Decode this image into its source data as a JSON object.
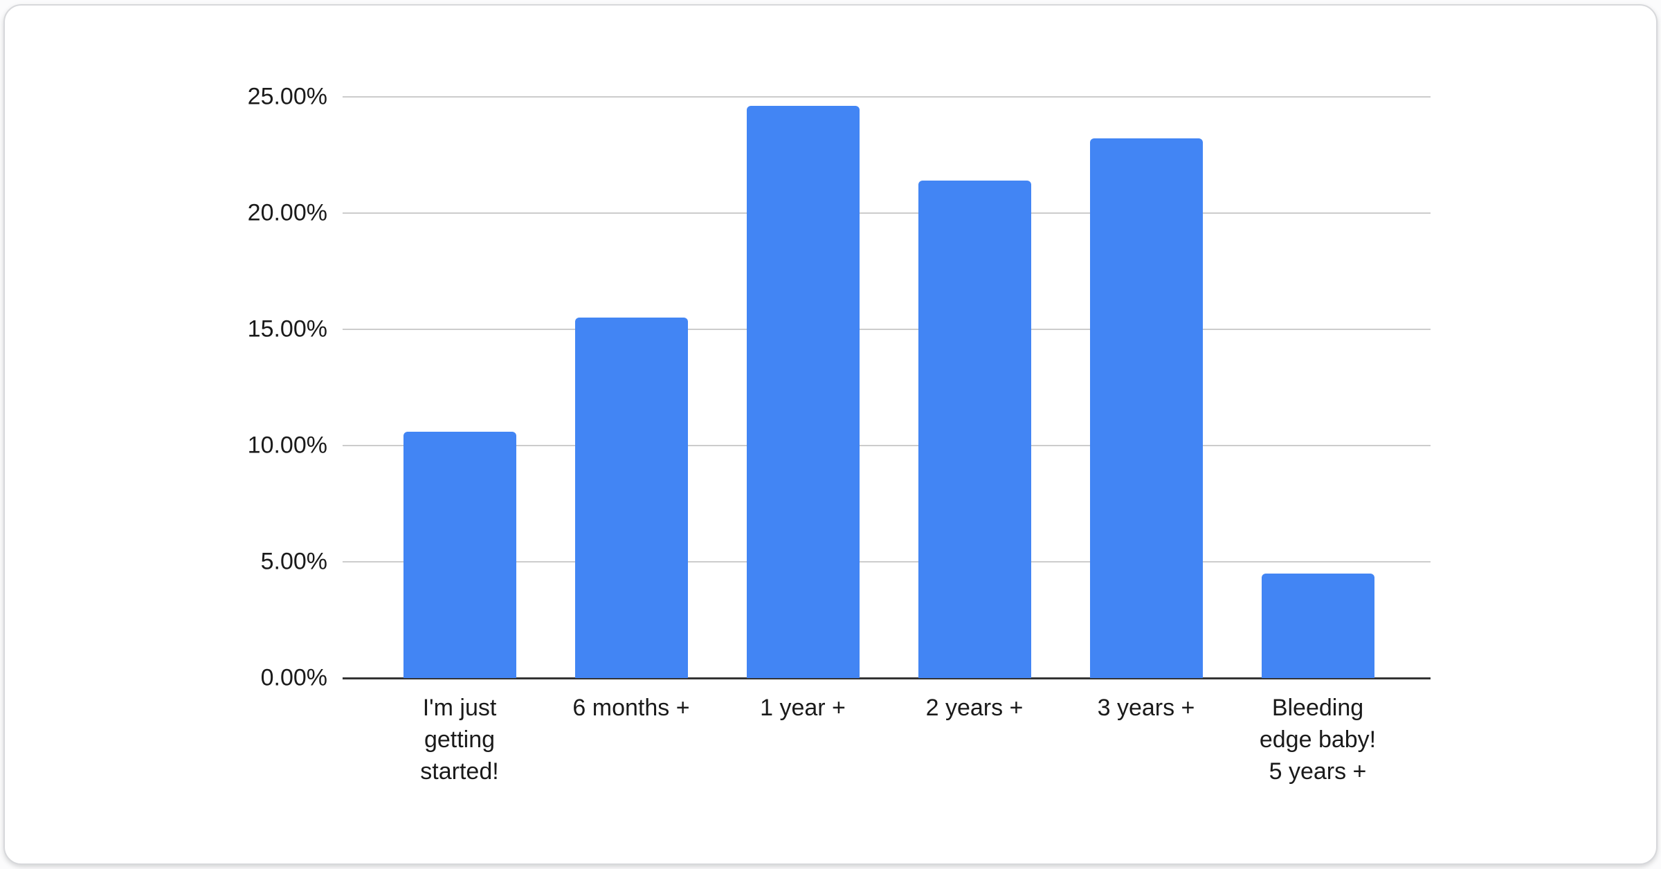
{
  "chart_data": {
    "type": "bar",
    "title": "",
    "categories": [
      "I'm just\ngetting\nstarted!",
      "6 months +",
      "1 year +",
      "2 years +",
      "3 years +",
      "Bleeding\nedge baby!\n5 years +"
    ],
    "values": [
      10.6,
      15.5,
      24.6,
      21.4,
      23.2,
      4.5
    ],
    "value_unit": "%",
    "series_name": "",
    "xlabel": "",
    "ylabel": "",
    "ylim": [
      0,
      25
    ],
    "yticks": [
      0,
      5,
      10,
      15,
      20,
      25
    ],
    "ytick_labels": [
      "0.00%",
      "5.00%",
      "10.00%",
      "15.00%",
      "20.00%",
      "25.00%"
    ],
    "grid": true,
    "legend": "none",
    "bar_color": "#4285f4",
    "gridline_color": "#cccccc",
    "axis_color": "#333333",
    "text_color": "#1a1a1a",
    "card_background": "#ffffff"
  }
}
